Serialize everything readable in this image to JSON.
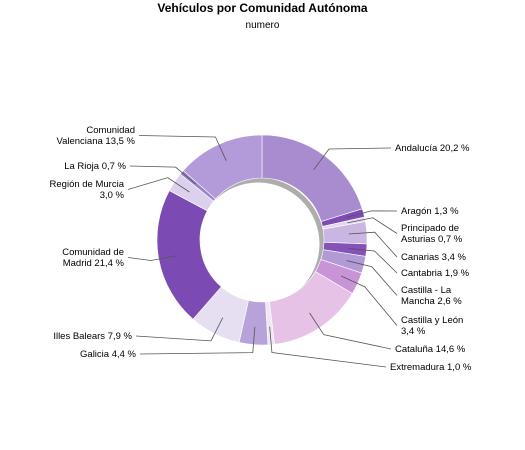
{
  "chart_data": {
    "type": "pie",
    "style": "donut",
    "title": "Vehículos por Comunidad Autónoma",
    "subtitle": "numero",
    "slices": [
      {
        "name": "Andalucía",
        "value": 20.2,
        "label_lines": [
          "Andalucía 20,2 %"
        ],
        "color": "#a98bd0"
      },
      {
        "name": "Aragón",
        "value": 1.3,
        "label_lines": [
          "Aragón 1,3 %"
        ],
        "color": "#7d4ab8"
      },
      {
        "name": "Principado de Asturias",
        "value": 0.7,
        "label_lines": [
          "Principado de",
          "Asturias 0,7 %"
        ],
        "color": "#e4d8f0"
      },
      {
        "name": "Canarias",
        "value": 3.4,
        "label_lines": [
          "Canarias 3,4 %"
        ],
        "color": "#c9b6e2"
      },
      {
        "name": "Cantabria",
        "value": 1.9,
        "label_lines": [
          "Cantabria 1,9 %"
        ],
        "color": "#8552ba"
      },
      {
        "name": "Castilla - La Mancha",
        "value": 2.6,
        "label_lines": [
          "Castilla - La",
          "Mancha 2,6 %"
        ],
        "color": "#b29ad7"
      },
      {
        "name": "Castilla y León",
        "value": 3.4,
        "label_lines": [
          "Castilla y León",
          "3,4 %"
        ],
        "color": "#c894d6"
      },
      {
        "name": "Cataluña",
        "value": 14.6,
        "label_lines": [
          "Cataluña 14,6 %"
        ],
        "color": "#e6c2e6"
      },
      {
        "name": "Extremadura",
        "value": 1.0,
        "label_lines": [
          "Extremadura 1,0 %"
        ],
        "color": "#f0e6f4"
      },
      {
        "name": "Galicia",
        "value": 4.4,
        "label_lines": [
          "Galicia 4,4 %"
        ],
        "color": "#b7a3d9"
      },
      {
        "name": "Illes Balears",
        "value": 7.9,
        "label_lines": [
          "Illes Balears 7,9 %"
        ],
        "color": "#e6dff2"
      },
      {
        "name": "Comunidad de Madrid",
        "value": 21.4,
        "label_lines": [
          "Comunidad de",
          "Madrid 21,4 %"
        ],
        "color": "#7c4ab3"
      },
      {
        "name": "Región de Murcia",
        "value": 3.0,
        "label_lines": [
          "Región de Murcia",
          "3,0 %"
        ],
        "color": "#dcd0ec"
      },
      {
        "name": "La Rioja",
        "value": 0.7,
        "label_lines": [
          "La Rioja 0,7 %"
        ],
        "color": "#9b7fc8"
      },
      {
        "name": "Comunidad Valenciana",
        "value": 13.5,
        "label_lines": [
          "Comunidad",
          "Valenciana 13,5 %"
        ],
        "color": "#b39ad8"
      }
    ]
  }
}
